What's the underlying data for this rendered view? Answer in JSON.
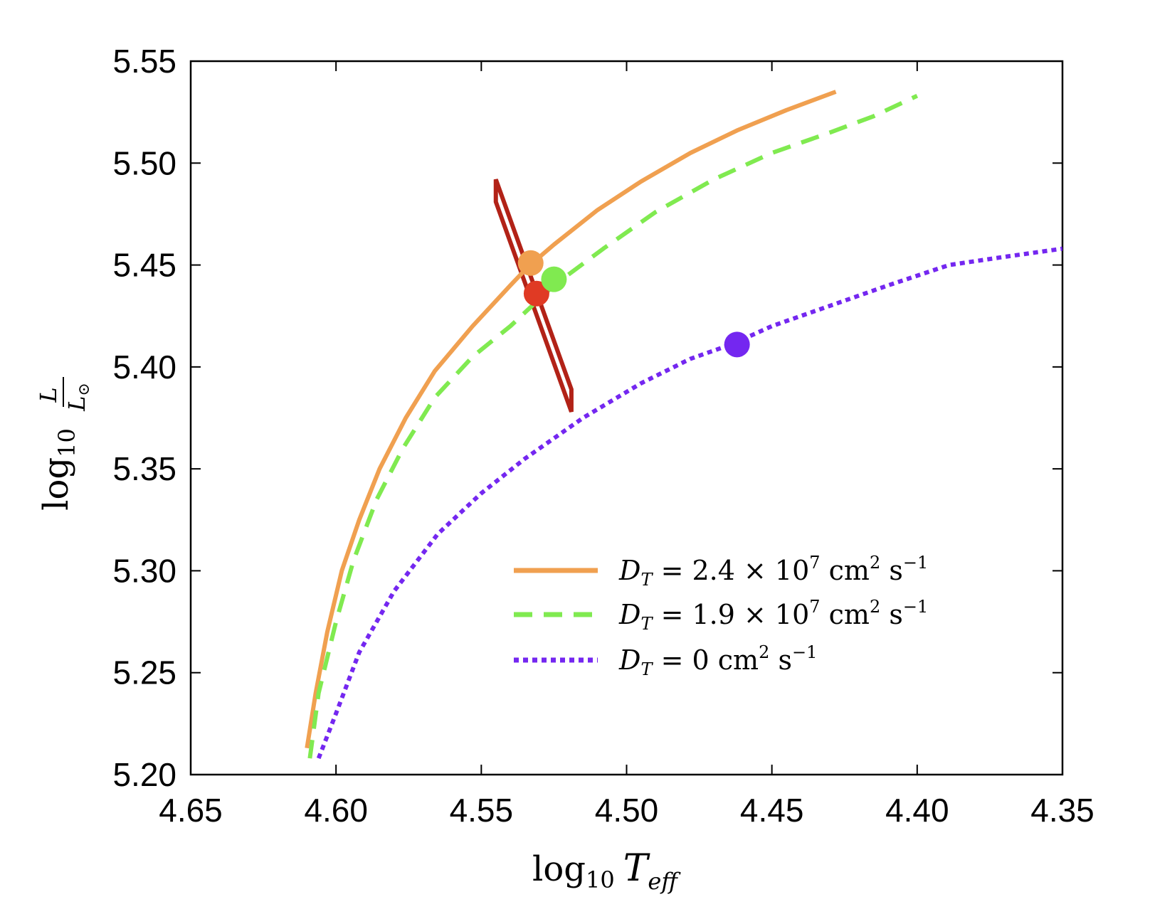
{
  "chart_data": {
    "type": "line",
    "title": "",
    "xlabel": "log10 Teff",
    "ylabel": "log10 L/L⊙",
    "xlim": [
      4.65,
      4.35
    ],
    "ylim": [
      5.2,
      5.55
    ],
    "x_reversed": true,
    "grid": false,
    "legend_position": "bottom-right",
    "x_ticks": [
      "4.65",
      "4.60",
      "4.55",
      "4.50",
      "4.45",
      "4.40",
      "4.35"
    ],
    "y_ticks": [
      "5.20",
      "5.25",
      "5.30",
      "5.35",
      "5.40",
      "5.45",
      "5.50",
      "5.55"
    ],
    "series": [
      {
        "name": "D_T = 2.4 × 10^7 cm^2 s^-1",
        "style": "solid",
        "color": "#F0A050",
        "x": [
          4.61,
          4.607,
          4.603,
          4.598,
          4.592,
          4.585,
          4.576,
          4.566,
          4.553,
          4.54,
          4.534,
          4.525,
          4.51,
          4.495,
          4.478,
          4.462,
          4.445,
          4.428
        ],
        "y": [
          5.213,
          5.24,
          5.27,
          5.3,
          5.325,
          5.35,
          5.375,
          5.398,
          5.42,
          5.44,
          5.449,
          5.46,
          5.477,
          5.491,
          5.505,
          5.516,
          5.526,
          5.535
        ],
        "marker": {
          "x": 4.533,
          "y": 5.451
        }
      },
      {
        "name": "D_T = 1.9 × 10^7 cm^2 s^-1",
        "style": "dashed",
        "color": "#80EA50",
        "x": [
          4.609,
          4.606,
          4.6,
          4.594,
          4.586,
          4.577,
          4.566,
          4.553,
          4.54,
          4.525,
          4.508,
          4.49,
          4.47,
          4.45,
          4.43,
          4.415,
          4.4
        ],
        "y": [
          5.208,
          5.24,
          5.275,
          5.305,
          5.335,
          5.36,
          5.385,
          5.405,
          5.42,
          5.44,
          5.458,
          5.476,
          5.492,
          5.505,
          5.515,
          5.523,
          5.533
        ],
        "marker": {
          "x": 4.525,
          "y": 5.443
        }
      },
      {
        "name": "D_T = 0 cm^2 s^-1",
        "style": "dotted",
        "color": "#7427F0",
        "x": [
          4.606,
          4.6,
          4.592,
          4.58,
          4.565,
          4.55,
          4.535,
          4.515,
          4.495,
          4.478,
          4.464,
          4.45,
          4.43,
          4.41,
          4.389,
          4.37,
          4.35
        ],
        "y": [
          5.208,
          5.23,
          5.26,
          5.29,
          5.318,
          5.338,
          5.355,
          5.375,
          5.392,
          5.404,
          5.411,
          5.42,
          5.43,
          5.44,
          5.45,
          5.454,
          5.458
        ],
        "marker": {
          "x": 4.462,
          "y": 5.411
        }
      }
    ],
    "observation": {
      "color": "#B22217",
      "marker_color": "#E03A24",
      "marker": {
        "x": 4.531,
        "y": 5.436
      },
      "box_corners": [
        {
          "x": 4.545,
          "y": 5.492
        },
        {
          "x": 4.545,
          "y": 5.481
        },
        {
          "x": 4.519,
          "y": 5.378
        },
        {
          "x": 4.519,
          "y": 5.389
        }
      ]
    }
  },
  "legend": {
    "entries": [
      {
        "prefix": "D",
        "sub": "T",
        "value": " = 2.4 × 10",
        "exp": "7",
        "unit": " cm",
        "unit_exp": "2",
        "unit2": " s",
        "unit2_exp": "−1"
      },
      {
        "prefix": "D",
        "sub": "T",
        "value": " = 1.9 × 10",
        "exp": "7",
        "unit": " cm",
        "unit_exp": "2",
        "unit2": " s",
        "unit2_exp": "−1"
      },
      {
        "prefix": "D",
        "sub": "T",
        "value": " = 0",
        "exp": "",
        "unit": " cm",
        "unit_exp": "2",
        "unit2": " s",
        "unit2_exp": "−1"
      }
    ]
  },
  "axis_text": {
    "x_log": "log",
    "x_log_sub": "10",
    "x_var": "T",
    "x_var_sub": "eff",
    "y_log": "log",
    "y_log_sub": "10",
    "y_num": "L",
    "y_den": "L",
    "y_den_sub": "⊙"
  }
}
